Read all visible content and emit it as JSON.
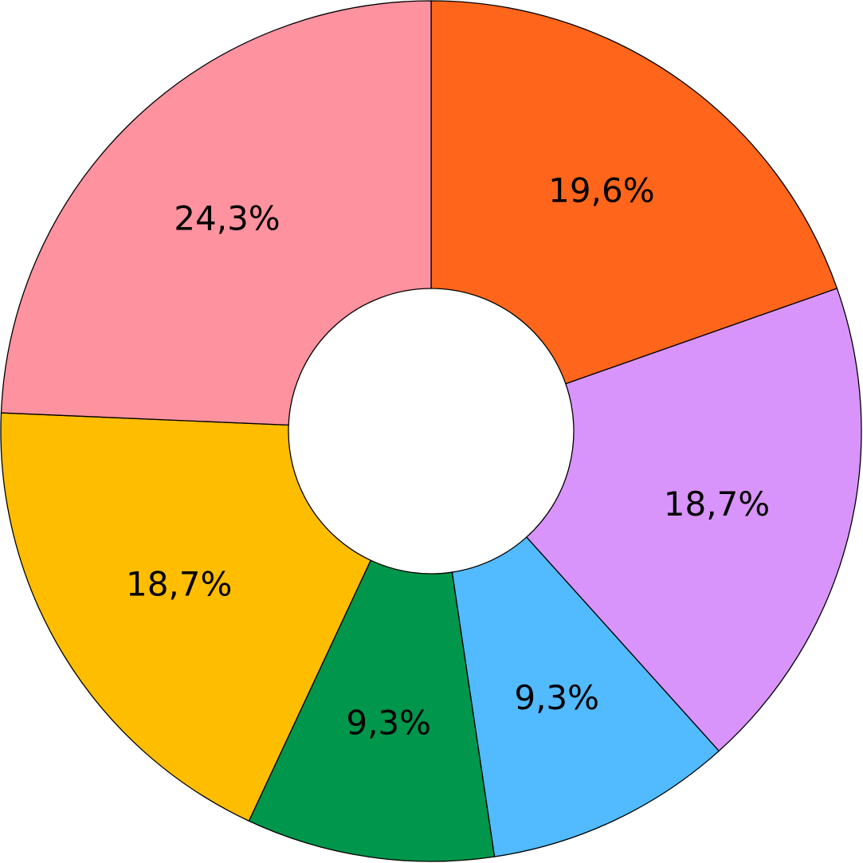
{
  "chart_data": {
    "type": "pie",
    "donut": true,
    "start_angle_deg": 0,
    "direction": "clockwise",
    "slices": [
      {
        "label": "19,6%",
        "value": 19.6,
        "color": "#FF661B"
      },
      {
        "label": "18,7%",
        "value": 18.7,
        "color": "#D894FA"
      },
      {
        "label": "9,3%",
        "value": 9.3,
        "color": "#52BAFF"
      },
      {
        "label": "9,3%",
        "value": 9.3,
        "color": "#00964B"
      },
      {
        "label": "18,7%",
        "value": 18.7,
        "color": "#FFBD00"
      },
      {
        "label": "24,3%",
        "value": 24.3,
        "color": "#FF929F"
      }
    ],
    "legend": false,
    "stroke_color": "#000000"
  }
}
